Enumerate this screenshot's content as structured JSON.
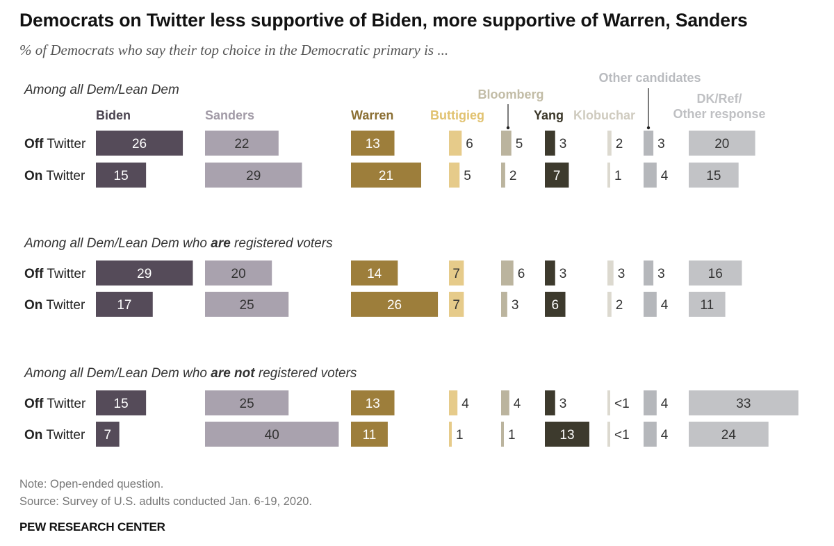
{
  "header": {
    "title": "Democrats on Twitter less supportive of Biden, more supportive of Warren, Sanders",
    "subtitle": "% of Democrats who say their top choice in the Democratic primary is ..."
  },
  "footer": {
    "note": "Note: Open-ended question.",
    "source": "Source: Survey of U.S. adults conducted Jan. 6-19, 2020.",
    "brand": "PEW RESEARCH CENTER"
  },
  "chart_data": {
    "type": "bar",
    "title": "Democrats on Twitter less supportive of Biden, more supportive of Warren, Sanders",
    "subtitle": "% of Democrats who say their top choice in the Democratic primary is ...",
    "xlabel": "",
    "ylabel": "",
    "candidates": [
      {
        "name": "Biden",
        "color": "#554b59"
      },
      {
        "name": "Sanders",
        "color": "#a9a2ae"
      },
      {
        "name": "Warren",
        "color": "#9d7e3b"
      },
      {
        "name": "Buttigieg",
        "color": "#e6cb8a"
      },
      {
        "name": "Bloomberg",
        "color": "#bbb49e"
      },
      {
        "name": "Yang",
        "color": "#3d3a2d"
      },
      {
        "name": "Klobuchar",
        "color": "#dcd9cf"
      },
      {
        "name": "Other candidates",
        "color": "#b5b7bb"
      },
      {
        "name": "DK/Ref/ Other response",
        "color": "#c2c3c6"
      }
    ],
    "groups": [
      {
        "label_parts": [
          {
            "text": "Among all Dem/Lean Dem",
            "bold": false
          }
        ],
        "rows": [
          {
            "prefix": "Off",
            "suffix": " Twitter",
            "values": [
              26,
              22,
              13,
              6,
              5,
              3,
              2,
              3,
              20
            ],
            "labels": [
              "26",
              "22",
              "13",
              "6",
              "5",
              "3",
              "2",
              "3",
              "20"
            ]
          },
          {
            "prefix": "On",
            "suffix": " Twitter",
            "values": [
              15,
              29,
              21,
              5,
              2,
              7,
              1,
              4,
              15
            ],
            "labels": [
              "15",
              "29",
              "21",
              "5",
              "2",
              "7",
              "1",
              "4",
              "15"
            ]
          }
        ]
      },
      {
        "label_parts": [
          {
            "text": "Among all Dem/Lean Dem who ",
            "bold": false
          },
          {
            "text": "are",
            "bold": true
          },
          {
            "text": " registered voters",
            "bold": false
          }
        ],
        "rows": [
          {
            "prefix": "Off",
            "suffix": " Twitter",
            "values": [
              29,
              20,
              14,
              7,
              6,
              3,
              3,
              3,
              16
            ],
            "labels": [
              "29",
              "20",
              "14",
              "7",
              "6",
              "3",
              "3",
              "3",
              "16"
            ]
          },
          {
            "prefix": "On",
            "suffix": " Twitter",
            "values": [
              17,
              25,
              26,
              7,
              3,
              6,
              2,
              4,
              11
            ],
            "labels": [
              "17",
              "25",
              "26",
              "7",
              "3",
              "6",
              "2",
              "4",
              "11"
            ]
          }
        ]
      },
      {
        "label_parts": [
          {
            "text": "Among all Dem/Lean Dem who ",
            "bold": false
          },
          {
            "text": "are not",
            "bold": true
          },
          {
            "text": " registered voters",
            "bold": false
          }
        ],
        "rows": [
          {
            "prefix": "Off",
            "suffix": " Twitter",
            "values": [
              15,
              25,
              13,
              4,
              4,
              3,
              0.4,
              4,
              33
            ],
            "labels": [
              "15",
              "25",
              "13",
              "4",
              "4",
              "3",
              "<1",
              "4",
              "33"
            ]
          },
          {
            "prefix": "On",
            "suffix": " Twitter",
            "values": [
              7,
              40,
              11,
              1,
              1,
              13,
              0.4,
              4,
              24
            ],
            "labels": [
              "7",
              "40",
              "11",
              "1",
              "1",
              "13",
              "<1",
              "4",
              "24"
            ]
          }
        ]
      }
    ]
  }
}
